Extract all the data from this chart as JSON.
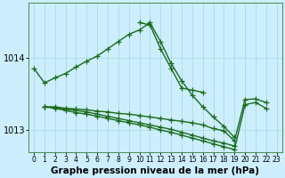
{
  "bg_color": "#cceeff",
  "grid_color": "#aadddd",
  "line_color": "#1a6b1a",
  "marker": "+",
  "markersize": 4,
  "linewidth": 1.0,
  "xlabel": "Graphe pression niveau de la mer (hPa)",
  "xlabel_fontsize": 7.5,
  "ylabel_fontsize": 7,
  "ylim": [
    1012.7,
    1014.75
  ],
  "xlim": [
    -0.5,
    23.5
  ],
  "yticks": [
    1013,
    1014
  ],
  "xticks": [
    0,
    1,
    2,
    3,
    4,
    5,
    6,
    7,
    8,
    9,
    10,
    11,
    12,
    13,
    14,
    15,
    16,
    17,
    18,
    19,
    20,
    21,
    22,
    23
  ],
  "series": [
    [
      1013.85,
      1013.65,
      1013.72,
      1013.78,
      1013.87,
      1013.95,
      1014.02,
      1014.12,
      1014.22,
      1014.32,
      1014.38,
      1014.48,
      1014.22,
      1013.92,
      1013.68,
      1013.48,
      1013.32,
      1013.18,
      1013.05,
      1012.9,
      null,
      null,
      null,
      null
    ],
    [
      null,
      null,
      null,
      null,
      null,
      null,
      null,
      null,
      null,
      null,
      1014.48,
      1014.45,
      1014.12,
      1013.85,
      1013.58,
      1013.55,
      1013.52,
      null,
      null,
      null,
      null,
      null,
      null,
      null
    ],
    [
      null,
      1013.32,
      1013.32,
      1013.3,
      1013.29,
      1013.28,
      1013.26,
      1013.25,
      1013.23,
      1013.22,
      1013.2,
      1013.18,
      1013.16,
      1013.14,
      1013.12,
      1013.1,
      1013.07,
      1013.02,
      1012.99,
      1012.85,
      1013.42,
      1013.43,
      1013.38,
      null
    ],
    [
      null,
      1013.32,
      1013.31,
      1013.29,
      1013.27,
      1013.25,
      1013.22,
      1013.19,
      1013.16,
      1013.13,
      1013.1,
      1013.07,
      1013.04,
      1013.01,
      1012.97,
      1012.93,
      1012.89,
      1012.85,
      1012.82,
      1012.78,
      null,
      null,
      null,
      null
    ],
    [
      null,
      1013.32,
      1013.3,
      1013.27,
      1013.24,
      1013.22,
      1013.19,
      1013.16,
      1013.13,
      1013.1,
      1013.07,
      1013.04,
      1013.0,
      1012.97,
      1012.93,
      1012.89,
      1012.85,
      1012.81,
      1012.77,
      1012.73,
      1013.35,
      1013.38,
      1013.3,
      null
    ]
  ]
}
